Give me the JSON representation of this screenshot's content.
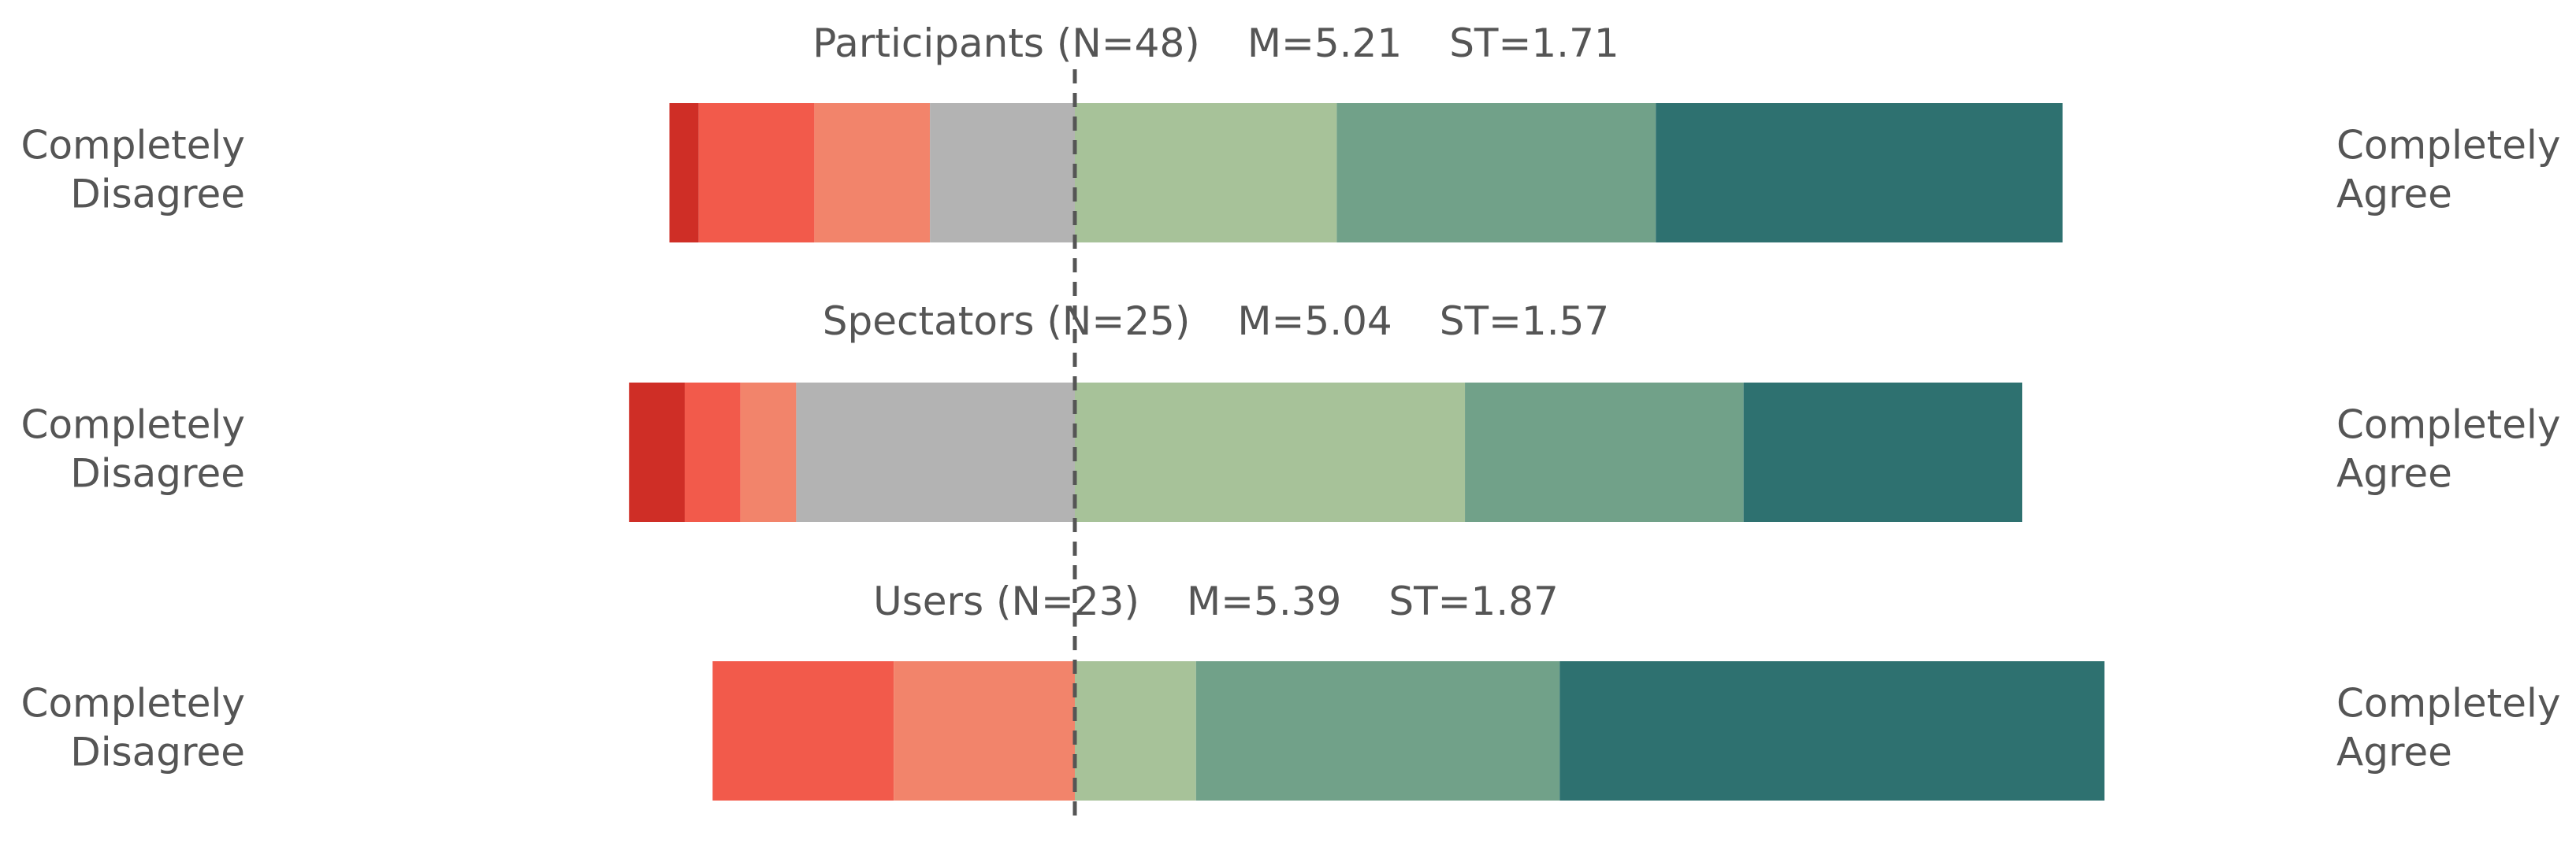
{
  "chart_data": {
    "type": "diverging_stacked_bar",
    "left_label": [
      "Completely",
      "Disagree"
    ],
    "right_label": [
      "Completely",
      "Agree"
    ],
    "colors": [
      "#cf2e26",
      "#f25a4b",
      "#f2846b",
      "#b3b3b3",
      "#a7c299",
      "#71a189",
      "#2e7170"
    ],
    "groups": [
      {
        "title": "Participants (N=48)",
        "mean": "M=5.21",
        "sd": "ST=1.71",
        "values": [
          2.1,
          8.3,
          8.3,
          10.4,
          18.8,
          22.9,
          29.2
        ]
      },
      {
        "title": "Spectators (N=25)",
        "mean": "M=5.04",
        "sd": "ST=1.57",
        "values": [
          4,
          4,
          4,
          20,
          28,
          20,
          20
        ]
      },
      {
        "title": "Users (N=23)",
        "mean": "M=5.39",
        "sd": "ST=1.87",
        "values": [
          0,
          13,
          13,
          0,
          8.7,
          26.1,
          39.1
        ]
      }
    ]
  }
}
